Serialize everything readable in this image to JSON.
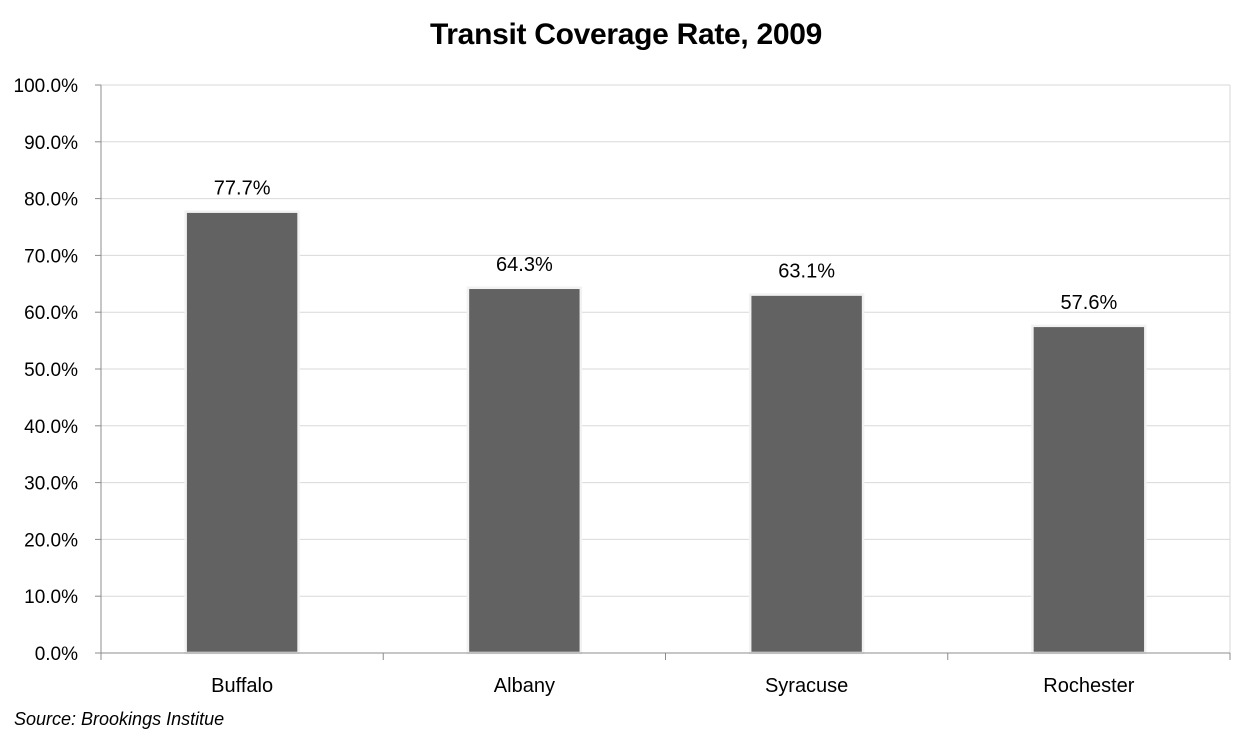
{
  "chart_data": {
    "type": "bar",
    "title": "Transit Coverage Rate, 2009",
    "categories": [
      "Buffalo",
      "Albany",
      "Syracuse",
      "Rochester"
    ],
    "values": [
      77.7,
      64.3,
      63.1,
      57.6
    ],
    "data_labels": [
      "77.7%",
      "64.3%",
      "63.1%",
      "57.6%"
    ],
    "ylim": [
      0,
      100
    ],
    "yticks": [
      0,
      10,
      20,
      30,
      40,
      50,
      60,
      70,
      80,
      90,
      100
    ],
    "ytick_labels": [
      "0.0%",
      "10.0%",
      "20.0%",
      "30.0%",
      "40.0%",
      "50.0%",
      "60.0%",
      "70.0%",
      "80.0%",
      "90.0%",
      "100.0%"
    ],
    "xlabel": "",
    "ylabel": "",
    "grid": true,
    "legend": "none",
    "bar_color": "#626262",
    "grid_color": "#d9d9d9",
    "source": "Source: Brookings Institue"
  }
}
